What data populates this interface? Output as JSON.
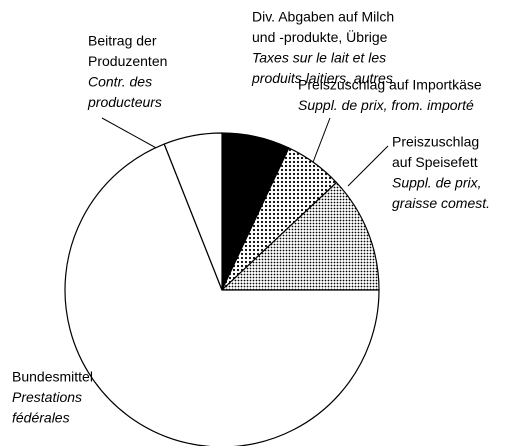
{
  "chart_data": {
    "type": "pie",
    "slices": [
      {
        "label_de": [
          "Div. Abgaben auf Milch",
          "und -produkte, Übrige"
        ],
        "label_fr": [
          "Taxes sur le lait et les",
          "produits laitiers, autres"
        ],
        "value": 7,
        "color": "#000000",
        "pattern": "solid"
      },
      {
        "label_de": [
          "Preiszuschlag auf Importkäse"
        ],
        "label_fr": [
          "Suppl. de prix, from. importé"
        ],
        "value": 6,
        "color": "#000000",
        "pattern": "dots"
      },
      {
        "label_de": [
          "Preiszuschlag",
          "auf Speisefett"
        ],
        "label_fr": [
          "Suppl. de prix,",
          "graisse comest."
        ],
        "value": 12,
        "color": "#000000",
        "pattern": "dense-dots"
      },
      {
        "label_de": [
          "Bundesmittel"
        ],
        "label_fr": [
          "Prestations",
          "fédérales"
        ],
        "value": 69,
        "color": "#ffffff",
        "pattern": "solid"
      },
      {
        "label_de": [
          "Beitrag der",
          "Produzenten"
        ],
        "label_fr": [
          "Contr. des",
          "producteurs"
        ],
        "value": 6,
        "color": "#ffffff",
        "pattern": "solid"
      }
    ]
  }
}
